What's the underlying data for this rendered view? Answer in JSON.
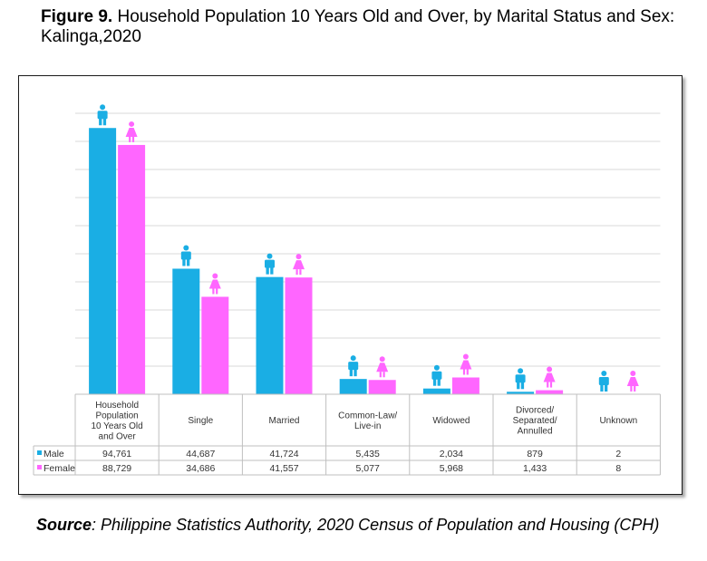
{
  "figure": {
    "label": "Figure 9.",
    "title": "Household Population 10 Years Old and Over, by Marital Status and Sex: Kalinga,2020"
  },
  "source": {
    "label": "Source",
    "text": ": Philippine Statistics Authority, 2020 Census of Population and Housing (CPH)"
  },
  "colors": {
    "male": "#1aaee4",
    "female": "#ff66ff",
    "grid": "#d9d9d9",
    "border": "#bfbfbf"
  },
  "icons": {
    "male": "male-person-icon",
    "female": "female-person-icon"
  },
  "chart_data": {
    "type": "bar",
    "categories": [
      [
        "Household",
        "Population",
        "10 Years Old",
        "and Over"
      ],
      [
        "Single"
      ],
      [
        "Married"
      ],
      [
        "Common-Law/",
        "Live-in"
      ],
      [
        "Widowed"
      ],
      [
        "Divorced/",
        "Separated/",
        "Annulled"
      ],
      [
        "Unknown"
      ]
    ],
    "series": [
      {
        "name": "Male",
        "values": [
          94761,
          44687,
          41724,
          5435,
          2034,
          879,
          2
        ],
        "labels": [
          "94,761",
          "44,687",
          "41,724",
          "5,435",
          "2,034",
          "879",
          "2"
        ]
      },
      {
        "name": "Female",
        "values": [
          88729,
          34686,
          41557,
          5077,
          5968,
          1433,
          8
        ],
        "labels": [
          "88,729",
          "34,686",
          "41,557",
          "5,077",
          "5,968",
          "1,433",
          "8"
        ]
      }
    ],
    "ylim": [
      0,
      100000
    ],
    "grid": true,
    "legend": "data-table-left"
  }
}
